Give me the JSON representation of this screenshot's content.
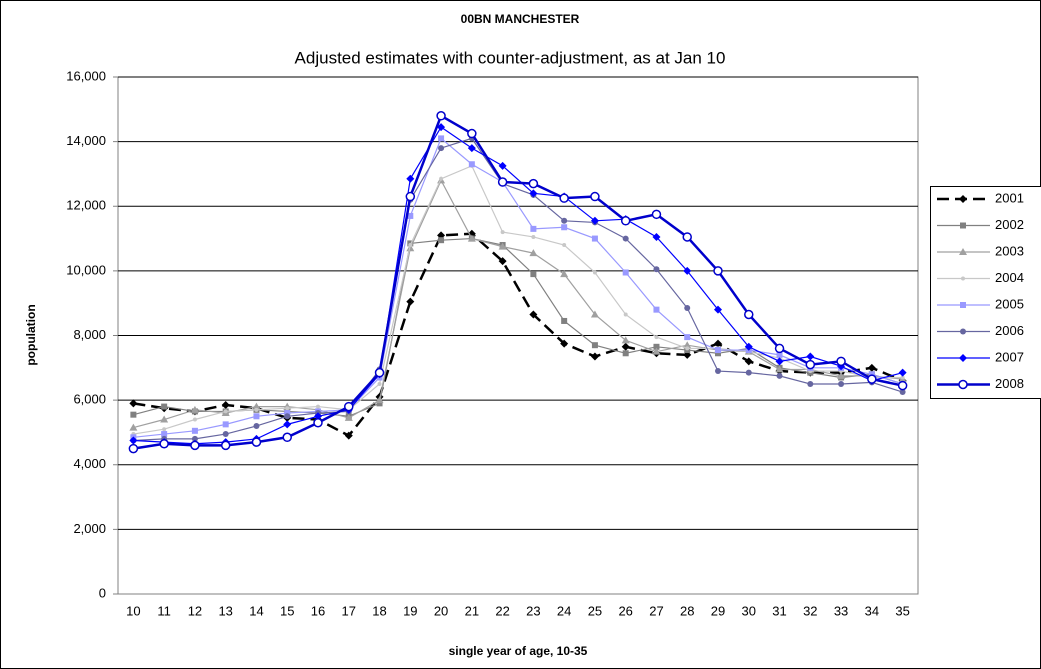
{
  "chart_data": {
    "type": "line",
    "title": "00BN MANCHESTER",
    "subtitle": "Adjusted estimates with counter-adjustment, as at Jan 10",
    "x_label": "single year of age, 10-35",
    "y_label": "population",
    "x": [
      10,
      11,
      12,
      13,
      14,
      15,
      16,
      17,
      18,
      19,
      20,
      21,
      22,
      23,
      24,
      25,
      26,
      27,
      28,
      29,
      30,
      31,
      32,
      33,
      34,
      35
    ],
    "xlim": [
      9.5,
      35.5
    ],
    "ylim": [
      0,
      16000
    ],
    "yticks": [
      0,
      {
        "value": 2000,
        "label": "2,000"
      },
      {
        "value": 4000,
        "label": "4,000"
      },
      {
        "value": 6000,
        "label": "6,000"
      },
      {
        "value": 8000,
        "label": "8,000"
      },
      {
        "value": 10000,
        "label": "10,000"
      },
      {
        "value": 12000,
        "label": "12,000"
      },
      {
        "value": 14000,
        "label": "14,000"
      },
      {
        "value": 16000,
        "label": "16,000"
      }
    ],
    "grid": true,
    "legend": "right",
    "series": [
      {
        "name": "2001",
        "color": "#000000",
        "marker": "diamond",
        "dashed": true,
        "values": [
          5900,
          5750,
          5650,
          5850,
          5750,
          5450,
          5400,
          4900,
          6100,
          9050,
          11100,
          11150,
          10300,
          8650,
          7750,
          7350,
          7650,
          7450,
          7400,
          7750,
          7200,
          6900,
          6850,
          6850,
          7000,
          6600
        ]
      },
      {
        "name": "2002",
        "color": "#808080",
        "marker": "square",
        "values": [
          5550,
          5800,
          5650,
          5650,
          5700,
          5650,
          5600,
          5500,
          5900,
          10850,
          10950,
          11000,
          10800,
          9900,
          8450,
          7700,
          7450,
          7650,
          7550,
          7450,
          7600,
          7000,
          6850,
          6700,
          6800,
          6500
        ]
      },
      {
        "name": "2003",
        "color": "#a0a0a0",
        "marker": "triangle",
        "values": [
          5150,
          5400,
          5700,
          5600,
          5800,
          5800,
          5700,
          5450,
          6000,
          10700,
          12800,
          11000,
          10750,
          10550,
          9900,
          8650,
          7850,
          7500,
          7700,
          7550,
          7500,
          6950,
          6950,
          6750,
          6750,
          6650
        ]
      },
      {
        "name": "2004",
        "color": "#c8c8c8",
        "marker": "dot",
        "values": [
          4950,
          5100,
          5400,
          5650,
          5700,
          5750,
          5800,
          5700,
          6500,
          10800,
          12850,
          13250,
          11200,
          11050,
          10800,
          9950,
          8650,
          7950,
          7600,
          7600,
          7500,
          7300,
          6900,
          6900,
          6700,
          6700
        ]
      },
      {
        "name": "2005",
        "color": "#9999ff",
        "marker": "square",
        "values": [
          4850,
          4950,
          5050,
          5250,
          5500,
          5600,
          5650,
          5700,
          6700,
          11700,
          14100,
          13300,
          12750,
          11300,
          11350,
          11000,
          9950,
          8800,
          7950,
          7550,
          7550,
          7400,
          7000,
          7000,
          6800,
          6500
        ]
      },
      {
        "name": "2006",
        "color": "#6666a0",
        "marker": "circle",
        "values": [
          4750,
          4800,
          4800,
          4950,
          5200,
          5500,
          5600,
          5650,
          6950,
          12200,
          13800,
          14100,
          12700,
          12350,
          11550,
          11500,
          11000,
          10050,
          8850,
          6900,
          6850,
          6750,
          6500,
          6500,
          6550,
          6250
        ]
      },
      {
        "name": "2007",
        "color": "#0000ff",
        "marker": "diamond",
        "values": [
          4750,
          4700,
          4650,
          4700,
          4800,
          5250,
          5500,
          5700,
          6800,
          12850,
          14450,
          13800,
          13250,
          12400,
          12300,
          11550,
          11600,
          11050,
          10000,
          8800,
          7650,
          7200,
          7350,
          7050,
          6600,
          6850
        ]
      },
      {
        "name": "2008",
        "color": "#0000cc",
        "marker": "open-circle",
        "bold": true,
        "values": [
          4500,
          4650,
          4600,
          4600,
          4700,
          4850,
          5300,
          5800,
          6850,
          12300,
          14800,
          14250,
          12750,
          12700,
          12250,
          12300,
          11550,
          11750,
          11050,
          10000,
          8650,
          7600,
          7100,
          7200,
          6650,
          6450
        ]
      }
    ]
  }
}
